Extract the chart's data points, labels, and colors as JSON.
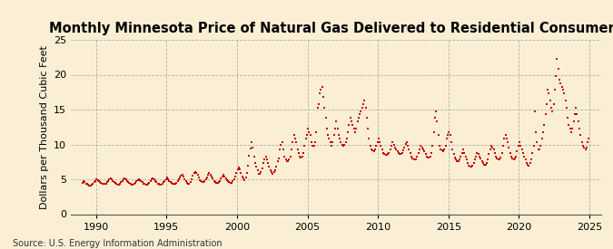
{
  "title": "Monthly Minnesota Price of Natural Gas Delivered to Residential Consumers",
  "ylabel": "Dollars per Thousand Cubic Feet",
  "source": "Source: U.S. Energy Information Administration",
  "background_color": "#faefd4",
  "plot_background_color": "#faefd4",
  "dot_color": "#cc0000",
  "xlim": [
    1988.2,
    2025.8
  ],
  "ylim": [
    0,
    25
  ],
  "yticks": [
    0,
    5,
    10,
    15,
    20,
    25
  ],
  "xticks": [
    1990,
    1995,
    2000,
    2005,
    2010,
    2015,
    2020,
    2025
  ],
  "title_fontsize": 10.5,
  "label_fontsize": 8,
  "source_fontsize": 7,
  "data": {
    "1989-01": 4.5,
    "1989-02": 4.8,
    "1989-03": 4.6,
    "1989-04": 4.4,
    "1989-05": 4.3,
    "1989-06": 4.2,
    "1989-07": 4.1,
    "1989-08": 4.1,
    "1989-09": 4.2,
    "1989-10": 4.4,
    "1989-11": 4.6,
    "1989-12": 4.8,
    "1990-01": 5.0,
    "1990-02": 4.9,
    "1990-03": 4.8,
    "1990-04": 4.6,
    "1990-05": 4.5,
    "1990-06": 4.4,
    "1990-07": 4.3,
    "1990-08": 4.3,
    "1990-09": 4.4,
    "1990-10": 4.6,
    "1990-11": 4.8,
    "1990-12": 5.0,
    "1991-01": 5.1,
    "1991-02": 5.0,
    "1991-03": 4.8,
    "1991-04": 4.6,
    "1991-05": 4.5,
    "1991-06": 4.3,
    "1991-07": 4.2,
    "1991-08": 4.2,
    "1991-09": 4.4,
    "1991-10": 4.6,
    "1991-11": 4.8,
    "1991-12": 5.0,
    "1992-01": 5.1,
    "1992-02": 5.0,
    "1992-03": 4.8,
    "1992-04": 4.6,
    "1992-05": 4.5,
    "1992-06": 4.3,
    "1992-07": 4.2,
    "1992-08": 4.2,
    "1992-09": 4.3,
    "1992-10": 4.5,
    "1992-11": 4.7,
    "1992-12": 4.9,
    "1993-01": 5.0,
    "1993-02": 4.9,
    "1993-03": 4.7,
    "1993-04": 4.6,
    "1993-05": 4.4,
    "1993-06": 4.3,
    "1993-07": 4.2,
    "1993-08": 4.2,
    "1993-09": 4.3,
    "1993-10": 4.5,
    "1993-11": 4.8,
    "1993-12": 5.0,
    "1994-01": 5.1,
    "1994-02": 5.0,
    "1994-03": 4.8,
    "1994-04": 4.6,
    "1994-05": 4.4,
    "1994-06": 4.3,
    "1994-07": 4.2,
    "1994-08": 4.2,
    "1994-09": 4.4,
    "1994-10": 4.6,
    "1994-11": 4.8,
    "1994-12": 5.0,
    "1995-01": 5.2,
    "1995-02": 5.0,
    "1995-03": 4.8,
    "1995-04": 4.6,
    "1995-05": 4.5,
    "1995-06": 4.4,
    "1995-07": 4.3,
    "1995-08": 4.3,
    "1995-09": 4.5,
    "1995-10": 4.7,
    "1995-11": 5.0,
    "1995-12": 5.2,
    "1996-01": 5.5,
    "1996-02": 5.7,
    "1996-03": 5.4,
    "1996-04": 5.0,
    "1996-05": 4.7,
    "1996-06": 4.5,
    "1996-07": 4.4,
    "1996-08": 4.4,
    "1996-09": 4.6,
    "1996-10": 5.0,
    "1996-11": 5.5,
    "1996-12": 5.9,
    "1997-01": 6.1,
    "1997-02": 5.9,
    "1997-03": 5.6,
    "1997-04": 5.2,
    "1997-05": 4.9,
    "1997-06": 4.7,
    "1997-07": 4.6,
    "1997-08": 4.6,
    "1997-09": 4.7,
    "1997-10": 5.0,
    "1997-11": 5.3,
    "1997-12": 5.7,
    "1998-01": 5.9,
    "1998-02": 5.7,
    "1998-03": 5.4,
    "1998-04": 5.1,
    "1998-05": 4.8,
    "1998-06": 4.6,
    "1998-07": 4.5,
    "1998-08": 4.5,
    "1998-09": 4.6,
    "1998-10": 4.8,
    "1998-11": 5.1,
    "1998-12": 5.4,
    "1999-01": 5.6,
    "1999-02": 5.4,
    "1999-03": 5.1,
    "1999-04": 4.9,
    "1999-05": 4.7,
    "1999-06": 4.6,
    "1999-07": 4.5,
    "1999-08": 4.5,
    "1999-09": 4.7,
    "1999-10": 5.0,
    "1999-11": 5.4,
    "1999-12": 5.9,
    "2000-01": 6.4,
    "2000-02": 6.7,
    "2000-03": 6.4,
    "2000-04": 5.9,
    "2000-05": 5.4,
    "2000-06": 5.1,
    "2000-07": 4.9,
    "2000-08": 5.2,
    "2000-09": 5.9,
    "2000-10": 6.9,
    "2000-11": 8.4,
    "2000-12": 9.4,
    "2001-01": 10.3,
    "2001-02": 9.6,
    "2001-03": 8.3,
    "2001-04": 7.3,
    "2001-05": 6.8,
    "2001-06": 6.3,
    "2001-07": 5.8,
    "2001-08": 5.8,
    "2001-09": 6.1,
    "2001-10": 6.6,
    "2001-11": 7.3,
    "2001-12": 7.8,
    "2002-01": 8.3,
    "2002-02": 7.8,
    "2002-03": 7.3,
    "2002-04": 6.8,
    "2002-05": 6.3,
    "2002-06": 6.0,
    "2002-07": 5.8,
    "2002-08": 6.0,
    "2002-09": 6.3,
    "2002-10": 6.8,
    "2002-11": 7.6,
    "2002-12": 8.0,
    "2003-01": 9.3,
    "2003-02": 10.0,
    "2003-03": 10.3,
    "2003-04": 9.3,
    "2003-05": 8.3,
    "2003-06": 7.8,
    "2003-07": 7.6,
    "2003-08": 7.6,
    "2003-09": 7.8,
    "2003-10": 8.3,
    "2003-11": 9.3,
    "2003-12": 10.3,
    "2004-01": 11.3,
    "2004-02": 10.8,
    "2004-03": 10.3,
    "2004-04": 9.3,
    "2004-05": 8.8,
    "2004-06": 8.3,
    "2004-07": 8.1,
    "2004-08": 8.3,
    "2004-09": 8.8,
    "2004-10": 9.8,
    "2004-11": 10.8,
    "2004-12": 11.3,
    "2005-01": 12.3,
    "2005-02": 11.8,
    "2005-03": 11.3,
    "2005-04": 10.3,
    "2005-05": 9.8,
    "2005-06": 9.8,
    "2005-07": 10.3,
    "2005-08": 11.8,
    "2005-09": 15.3,
    "2005-10": 15.8,
    "2005-11": 17.3,
    "2005-12": 17.8,
    "2006-01": 18.3,
    "2006-02": 16.8,
    "2006-03": 15.3,
    "2006-04": 13.8,
    "2006-05": 12.3,
    "2006-06": 11.3,
    "2006-07": 10.8,
    "2006-08": 10.3,
    "2006-09": 9.8,
    "2006-10": 10.3,
    "2006-11": 11.3,
    "2006-12": 12.3,
    "2007-01": 13.3,
    "2007-02": 12.3,
    "2007-03": 11.3,
    "2007-04": 10.8,
    "2007-05": 10.3,
    "2007-06": 10.0,
    "2007-07": 9.8,
    "2007-08": 10.0,
    "2007-09": 10.3,
    "2007-10": 10.8,
    "2007-11": 11.8,
    "2007-12": 12.8,
    "2008-01": 13.8,
    "2008-02": 13.3,
    "2008-03": 12.8,
    "2008-04": 12.3,
    "2008-05": 11.8,
    "2008-06": 12.3,
    "2008-07": 13.3,
    "2008-08": 13.8,
    "2008-09": 14.3,
    "2008-10": 14.8,
    "2008-11": 15.3,
    "2008-12": 15.8,
    "2009-01": 16.3,
    "2009-02": 15.3,
    "2009-03": 13.8,
    "2009-04": 12.3,
    "2009-05": 10.8,
    "2009-06": 9.8,
    "2009-07": 9.3,
    "2009-08": 9.1,
    "2009-09": 9.0,
    "2009-10": 9.3,
    "2009-11": 9.8,
    "2009-12": 10.3,
    "2010-01": 10.8,
    "2010-02": 10.3,
    "2010-03": 9.8,
    "2010-04": 9.3,
    "2010-05": 8.8,
    "2010-06": 8.6,
    "2010-07": 8.5,
    "2010-08": 8.5,
    "2010-09": 8.6,
    "2010-10": 8.8,
    "2010-11": 9.3,
    "2010-12": 9.8,
    "2011-01": 10.3,
    "2011-02": 10.0,
    "2011-03": 9.6,
    "2011-04": 9.3,
    "2011-05": 9.0,
    "2011-06": 8.8,
    "2011-07": 8.7,
    "2011-08": 8.7,
    "2011-09": 8.8,
    "2011-10": 9.1,
    "2011-11": 9.6,
    "2011-12": 10.1,
    "2012-01": 10.3,
    "2012-02": 9.8,
    "2012-03": 9.3,
    "2012-04": 8.8,
    "2012-05": 8.3,
    "2012-06": 8.0,
    "2012-07": 7.8,
    "2012-08": 7.8,
    "2012-09": 7.9,
    "2012-10": 8.3,
    "2012-11": 8.8,
    "2012-12": 9.3,
    "2013-01": 9.8,
    "2013-02": 9.6,
    "2013-03": 9.3,
    "2013-04": 9.0,
    "2013-05": 8.6,
    "2013-06": 8.3,
    "2013-07": 8.1,
    "2013-08": 8.1,
    "2013-09": 8.3,
    "2013-10": 8.8,
    "2013-11": 9.8,
    "2013-12": 11.8,
    "2014-01": 13.8,
    "2014-02": 14.8,
    "2014-03": 13.3,
    "2014-04": 11.3,
    "2014-05": 9.8,
    "2014-06": 9.3,
    "2014-07": 9.1,
    "2014-08": 9.0,
    "2014-09": 9.3,
    "2014-10": 9.8,
    "2014-11": 10.8,
    "2014-12": 11.3,
    "2015-01": 11.8,
    "2015-02": 11.3,
    "2015-03": 10.3,
    "2015-04": 9.3,
    "2015-05": 8.6,
    "2015-06": 8.1,
    "2015-07": 7.8,
    "2015-08": 7.6,
    "2015-09": 7.6,
    "2015-10": 7.8,
    "2015-11": 8.3,
    "2015-12": 8.8,
    "2016-01": 9.3,
    "2016-02": 8.8,
    "2016-03": 8.3,
    "2016-04": 7.8,
    "2016-05": 7.3,
    "2016-06": 7.0,
    "2016-07": 6.8,
    "2016-08": 6.8,
    "2016-09": 7.0,
    "2016-10": 7.3,
    "2016-11": 7.8,
    "2016-12": 8.3,
    "2017-01": 8.8,
    "2017-02": 8.6,
    "2017-03": 8.3,
    "2017-04": 8.0,
    "2017-05": 7.6,
    "2017-06": 7.3,
    "2017-07": 7.1,
    "2017-08": 7.1,
    "2017-09": 7.3,
    "2017-10": 7.8,
    "2017-11": 8.6,
    "2017-12": 9.3,
    "2018-01": 9.8,
    "2018-02": 9.6,
    "2018-03": 9.3,
    "2018-04": 8.8,
    "2018-05": 8.3,
    "2018-06": 8.0,
    "2018-07": 7.8,
    "2018-08": 7.8,
    "2018-09": 8.1,
    "2018-10": 8.8,
    "2018-11": 9.8,
    "2018-12": 10.8,
    "2019-01": 11.3,
    "2019-02": 10.8,
    "2019-03": 10.3,
    "2019-04": 9.6,
    "2019-05": 8.8,
    "2019-06": 8.3,
    "2019-07": 8.0,
    "2019-08": 7.8,
    "2019-09": 8.0,
    "2019-10": 8.3,
    "2019-11": 9.0,
    "2019-12": 9.8,
    "2020-01": 10.3,
    "2020-02": 9.8,
    "2020-03": 9.3,
    "2020-04": 8.8,
    "2020-05": 8.3,
    "2020-06": 7.8,
    "2020-07": 7.3,
    "2020-08": 7.1,
    "2020-09": 7.0,
    "2020-10": 7.3,
    "2020-11": 7.8,
    "2020-12": 8.8,
    "2021-01": 9.8,
    "2021-02": 14.8,
    "2021-03": 11.8,
    "2021-04": 10.3,
    "2021-05": 9.3,
    "2021-06": 9.3,
    "2021-07": 9.8,
    "2021-08": 10.8,
    "2021-09": 11.8,
    "2021-10": 12.8,
    "2021-11": 14.3,
    "2021-12": 15.8,
    "2022-01": 17.8,
    "2022-02": 17.3,
    "2022-03": 16.3,
    "2022-04": 15.3,
    "2022-05": 14.8,
    "2022-06": 15.8,
    "2022-07": 17.8,
    "2022-08": 19.8,
    "2022-09": 22.3,
    "2022-10": 20.8,
    "2022-11": 19.3,
    "2022-12": 18.8,
    "2023-01": 18.3,
    "2023-02": 17.8,
    "2023-03": 17.3,
    "2023-04": 16.3,
    "2023-05": 15.3,
    "2023-06": 13.8,
    "2023-07": 12.8,
    "2023-08": 12.3,
    "2023-09": 11.8,
    "2023-10": 12.3,
    "2023-11": 13.3,
    "2023-12": 14.3,
    "2024-01": 15.3,
    "2024-02": 14.3,
    "2024-03": 13.3,
    "2024-04": 12.3,
    "2024-05": 11.3,
    "2024-06": 10.3,
    "2024-07": 9.8,
    "2024-08": 9.6,
    "2024-09": 9.3,
    "2024-10": 9.6,
    "2024-11": 10.3,
    "2024-12": 10.8
  }
}
